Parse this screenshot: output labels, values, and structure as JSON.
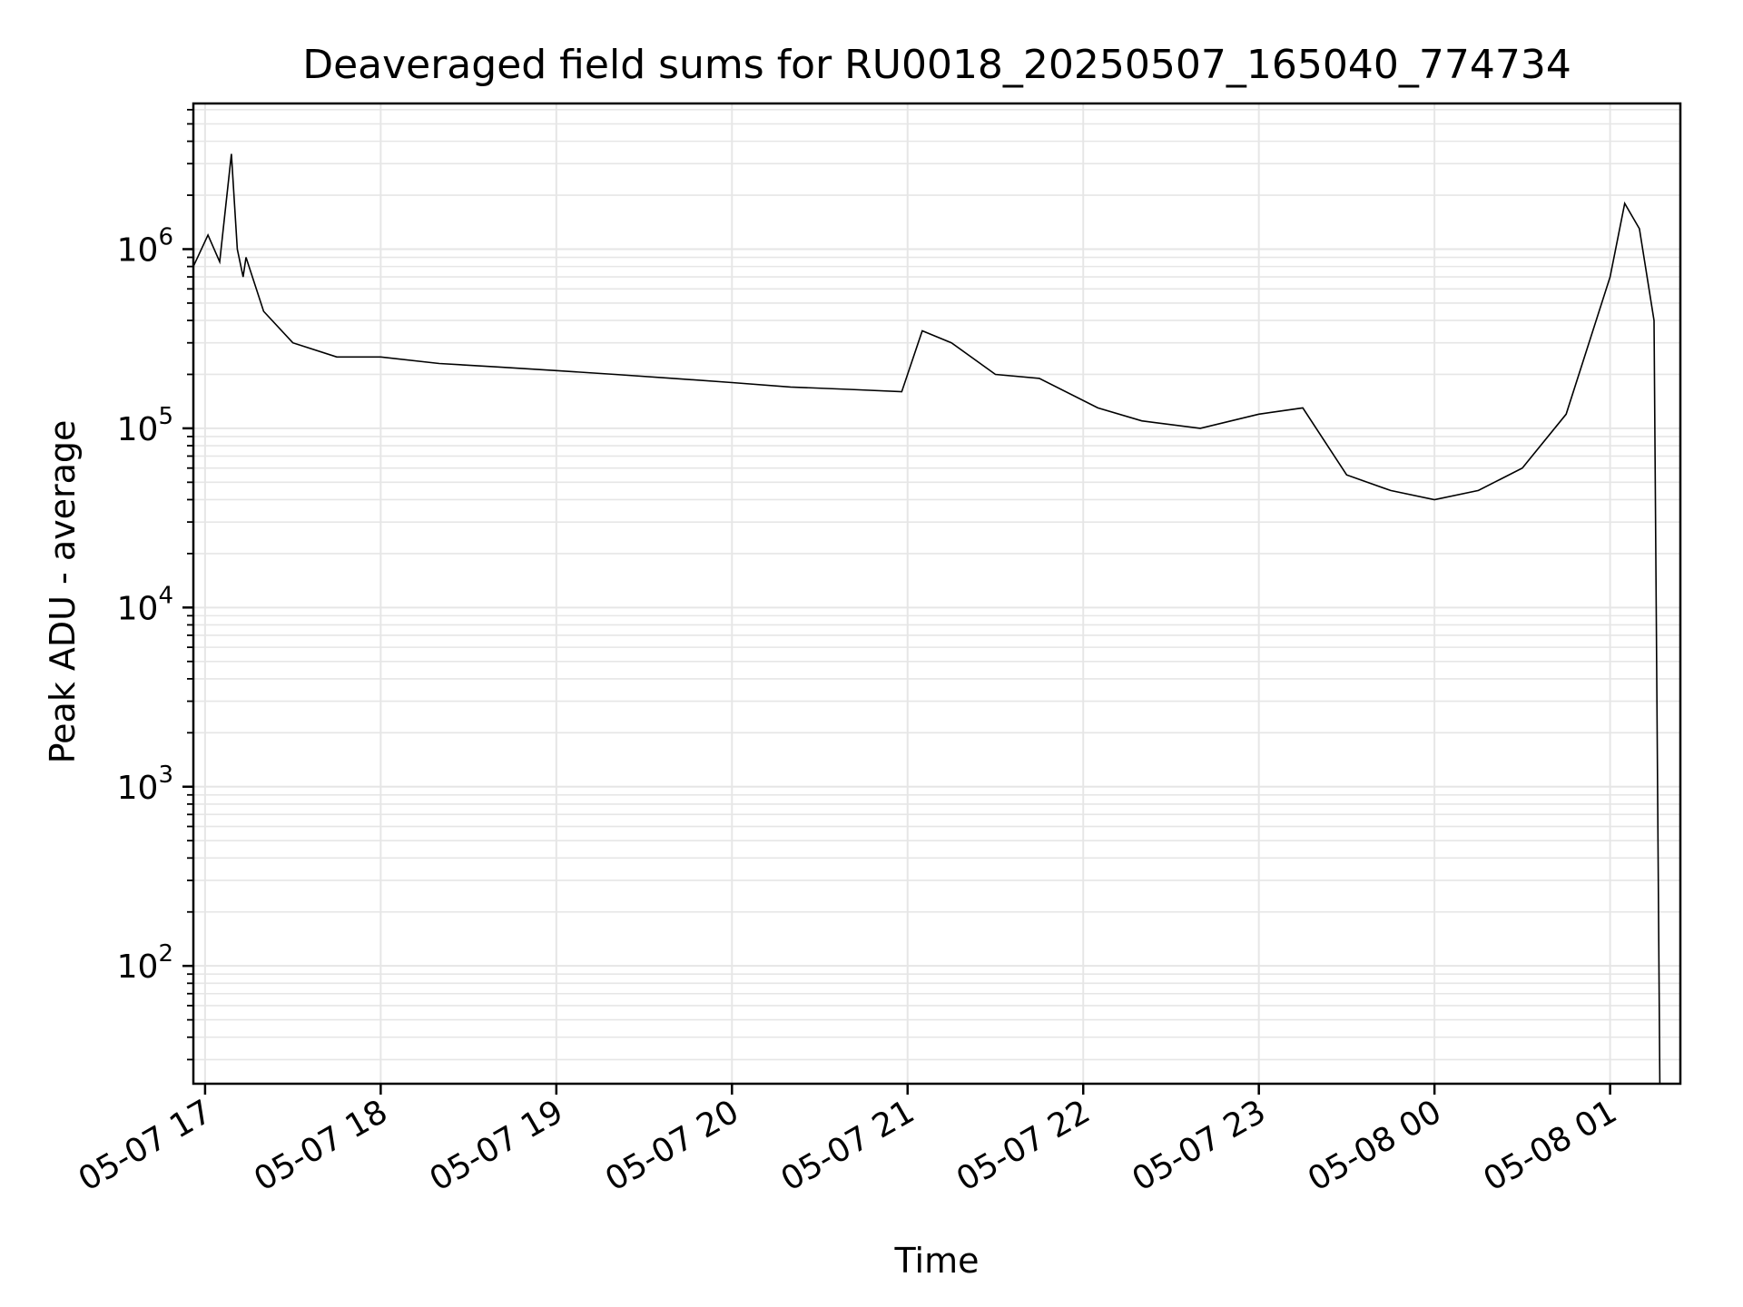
{
  "chart_data": {
    "type": "line",
    "title": "Deaveraged field sums for RU0018_20250507_165040_774734",
    "xlabel": "Time",
    "ylabel": "Peak ADU - average",
    "yscale": "log",
    "ylim": [
      22,
      6500000
    ],
    "xlim": [
      "2025-05-07 16:56",
      "2025-05-08 01:24"
    ],
    "grid": true,
    "line_color": "#000000",
    "grid_color": "#e6e6e6",
    "x_ticks": [
      {
        "label": "05-07 17",
        "value": "2025-05-07 17:00"
      },
      {
        "label": "05-07 18",
        "value": "2025-05-07 18:00"
      },
      {
        "label": "05-07 19",
        "value": "2025-05-07 19:00"
      },
      {
        "label": "05-07 20",
        "value": "2025-05-07 20:00"
      },
      {
        "label": "05-07 21",
        "value": "2025-05-07 21:00"
      },
      {
        "label": "05-07 22",
        "value": "2025-05-07 22:00"
      },
      {
        "label": "05-07 23",
        "value": "2025-05-07 23:00"
      },
      {
        "label": "05-08 00",
        "value": "2025-05-08 00:00"
      },
      {
        "label": "05-08 01",
        "value": "2025-05-08 01:00"
      }
    ],
    "y_ticks": [
      {
        "base": "10",
        "exp": "2",
        "value": 100
      },
      {
        "base": "10",
        "exp": "3",
        "value": 1000
      },
      {
        "base": "10",
        "exp": "4",
        "value": 10000
      },
      {
        "base": "10",
        "exp": "5",
        "value": 100000
      },
      {
        "base": "10",
        "exp": "6",
        "value": 1000000
      }
    ],
    "series": [
      {
        "x": [
          "2025-05-07 16:56",
          "2025-05-07 17:01",
          "2025-05-07 17:05",
          "2025-05-07 17:09",
          "2025-05-07 17:11",
          "2025-05-07 17:13",
          "2025-05-07 17:14",
          "2025-05-07 17:20",
          "2025-05-07 17:30",
          "2025-05-07 17:45",
          "2025-05-07 18:00",
          "2025-05-07 18:20",
          "2025-05-07 18:40",
          "2025-05-07 19:00",
          "2025-05-07 19:20",
          "2025-05-07 19:40",
          "2025-05-07 20:00",
          "2025-05-07 20:20",
          "2025-05-07 20:40",
          "2025-05-07 20:58",
          "2025-05-07 21:05",
          "2025-05-07 21:15",
          "2025-05-07 21:30",
          "2025-05-07 21:45",
          "2025-05-07 22:05",
          "2025-05-07 22:20",
          "2025-05-07 22:40",
          "2025-05-07 23:00",
          "2025-05-07 23:15",
          "2025-05-07 23:30",
          "2025-05-07 23:45",
          "2025-05-08 00:00",
          "2025-05-08 00:15",
          "2025-05-08 00:30",
          "2025-05-08 00:45",
          "2025-05-08 01:00",
          "2025-05-08 01:05",
          "2025-05-08 01:10",
          "2025-05-08 01:15",
          "2025-05-08 01:17"
        ],
        "y": [
          800000,
          1200000,
          850000,
          3400000,
          1000000,
          700000,
          900000,
          450000,
          300000,
          250000,
          250000,
          230000,
          220000,
          210000,
          200000,
          190000,
          180000,
          170000,
          165000,
          160000,
          350000,
          300000,
          200000,
          190000,
          130000,
          110000,
          100000,
          120000,
          130000,
          55000,
          45000,
          40000,
          45000,
          60000,
          120000,
          700000,
          1800000,
          1300000,
          400000,
          22
        ]
      }
    ]
  }
}
